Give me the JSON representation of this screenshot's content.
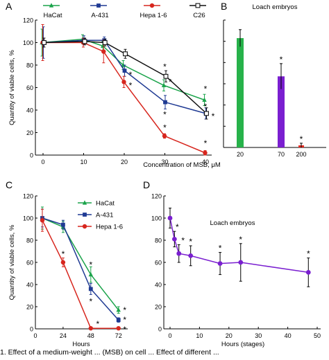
{
  "caption": "1. Effect of a medium-weight ... (MSB) on cell ... Effect of different ...",
  "colors": {
    "hacat": "#1aa34a",
    "a431": "#1f3a93",
    "hepa": "#d7261e",
    "c26": "#111111",
    "bars": [
      "#27b24a",
      "#7a1fd0",
      "#e52a20"
    ],
    "loach_line": "#7a1fd0"
  },
  "chart_data": [
    {
      "panel": "A",
      "type": "line",
      "legend": [
        "HaCat",
        "A-431",
        "Hepa 1-6",
        "C26"
      ],
      "legend_position": "top",
      "x": [
        0,
        10,
        15,
        20,
        30,
        40
      ],
      "xticks": [
        "0",
        "10",
        "20",
        "30",
        "40"
      ],
      "xlim": [
        -2,
        42
      ],
      "ylim": [
        0,
        120
      ],
      "yticks": [
        "0",
        "20",
        "40",
        "60",
        "80",
        "100",
        "120"
      ],
      "ylabel": "Quantity of viable cells, %",
      "xlabel": "Concentration of MSB, μM",
      "series": [
        {
          "name": "HaCat",
          "marker": "triangle",
          "values": [
            100,
            103,
            97,
            80,
            62,
            49
          ],
          "err": [
            12,
            4,
            4,
            4,
            5,
            5
          ],
          "stars": [
            false,
            false,
            false,
            false,
            true,
            true
          ]
        },
        {
          "name": "A-431",
          "marker": "square",
          "values": [
            100,
            102,
            102,
            75,
            47,
            37
          ],
          "err": [
            14,
            4,
            3,
            5,
            6,
            5
          ],
          "stars": [
            false,
            false,
            false,
            true,
            true,
            true
          ]
        },
        {
          "name": "Hepa 1-6",
          "marker": "circle",
          "values": [
            100,
            100,
            92,
            65,
            17,
            2
          ],
          "err": [
            16,
            4,
            10,
            5,
            2,
            2
          ],
          "stars": [
            false,
            false,
            false,
            true,
            true,
            true
          ]
        },
        {
          "name": "C26",
          "marker": "open-square",
          "values": [
            100,
            101,
            100,
            90,
            70,
            37
          ],
          "err": [
            4,
            3,
            3,
            4,
            5,
            5
          ],
          "stars": [
            false,
            false,
            false,
            false,
            true,
            true
          ]
        }
      ]
    },
    {
      "panel": "B",
      "type": "bar",
      "title": "Loach embryos",
      "categories": [
        "20",
        "70",
        "200"
      ],
      "values": [
        103,
        67,
        2
      ],
      "err": [
        8,
        12,
        2
      ],
      "stars": [
        false,
        true,
        true
      ],
      "ylim": [
        0,
        120
      ]
    },
    {
      "panel": "C",
      "type": "line",
      "legend": [
        "HaCat",
        "A-431",
        "Hepa 1-6"
      ],
      "legend_position": "top-right",
      "x": [
        6,
        24,
        48,
        72
      ],
      "xticks": [
        "0",
        "24",
        "48",
        "72"
      ],
      "xlim": [
        0,
        80
      ],
      "ylim": [
        0,
        120
      ],
      "yticks": [
        "0",
        "20",
        "40",
        "60",
        "80",
        "100",
        "120"
      ],
      "ylabel": "Quantity of viable cells, %",
      "xlabel": "Hours",
      "series": [
        {
          "name": "HaCat",
          "marker": "triangle",
          "values": [
            100,
            92,
            49,
            17
          ],
          "err": [
            10,
            5,
            7,
            3
          ],
          "stars": [
            false,
            false,
            true,
            true
          ]
        },
        {
          "name": "A-431",
          "marker": "square",
          "values": [
            100,
            94,
            36,
            8
          ],
          "err": [
            8,
            4,
            5,
            2
          ],
          "stars": [
            false,
            false,
            true,
            true
          ]
        },
        {
          "name": "Hepa 1-6",
          "marker": "circle",
          "values": [
            98,
            60,
            0.5,
            0.5
          ],
          "err": [
            10,
            4,
            0,
            0
          ],
          "stars": [
            false,
            true,
            true,
            true
          ]
        }
      ]
    },
    {
      "panel": "D",
      "type": "line",
      "title": "Loach embryos",
      "x": [
        0,
        1.5,
        3,
        7,
        17,
        24,
        47
      ],
      "xticks": [
        "0",
        "10",
        "20",
        "30",
        "40",
        "50"
      ],
      "xlim": [
        -2,
        52
      ],
      "ylim": [
        0,
        120
      ],
      "yticks": [
        "0",
        "20",
        "40",
        "60",
        "80",
        "100",
        "120"
      ],
      "xlabel": "Hours (stages)",
      "values": [
        100,
        81,
        68,
        66,
        59,
        60,
        51
      ],
      "err": [
        9,
        7,
        8,
        9,
        10,
        17,
        13
      ],
      "stars": [
        false,
        true,
        true,
        true,
        true,
        true,
        true
      ]
    }
  ]
}
